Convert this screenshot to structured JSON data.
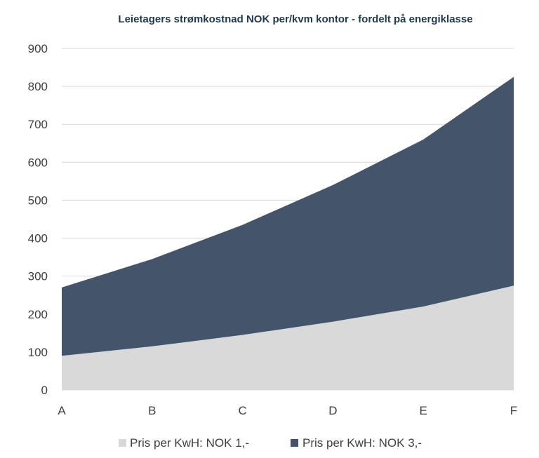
{
  "chart_data": {
    "type": "area",
    "title": "Leietagers strømkostnad NOK per/kvm kontor -  fordelt på energiklasse",
    "xlabel": "",
    "ylabel": "",
    "categories": [
      "A",
      "B",
      "C",
      "D",
      "E",
      "F"
    ],
    "ylim": [
      0,
      900
    ],
    "yticks": [
      0,
      100,
      200,
      300,
      400,
      500,
      600,
      700,
      800,
      900
    ],
    "grid": true,
    "legend_position": "bottom",
    "series": [
      {
        "name": "Pris per KwH: NOK 1,-",
        "color": "#d9d9d9",
        "values": [
          90,
          115,
          145,
          180,
          220,
          275
        ]
      },
      {
        "name": "Pris per KwH: NOK 3,-",
        "color": "#44546a",
        "values": [
          270,
          345,
          435,
          540,
          660,
          825
        ]
      }
    ]
  }
}
